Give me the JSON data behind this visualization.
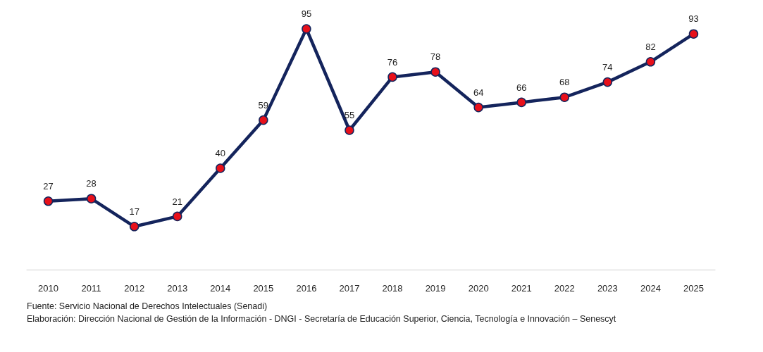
{
  "chart_data": {
    "type": "line",
    "categories": [
      "2010",
      "2011",
      "2012",
      "2013",
      "2014",
      "2015",
      "2016",
      "2017",
      "2018",
      "2019",
      "2020",
      "2021",
      "2022",
      "2023",
      "2024",
      "2025"
    ],
    "series": [
      {
        "color": "#14245c",
        "values": [
          27,
          28,
          17,
          21,
          40,
          59,
          95,
          55,
          76,
          78,
          64,
          66,
          68,
          74,
          82,
          93
        ]
      }
    ],
    "data_labels": true,
    "marker": "circle",
    "tick_labels": "x",
    "annotations": [
      "Fuente: Servicio Nacional de Derechos Intelectuales (Senadi)",
      "Elaboración: Dirección Nacional de Gestión de la Información - DNGI - Secretaría de Educación Superior, Ciencia, Tecnología e Innovación – Senescyt"
    ]
  }
}
